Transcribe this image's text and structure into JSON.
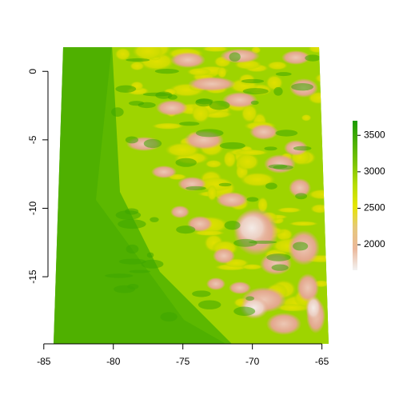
{
  "map": {
    "type": "raster",
    "title": "",
    "xlabel": "",
    "ylabel": "",
    "xlim": [
      -84.7,
      -64.0
    ],
    "ylim": [
      -19.9,
      2.0
    ],
    "x_ticks": [
      {
        "value": -85,
        "label": "-85"
      },
      {
        "value": -80,
        "label": "-80"
      },
      {
        "value": -75,
        "label": "-75"
      },
      {
        "value": -70,
        "label": "-70"
      },
      {
        "value": -65,
        "label": "-65"
      }
    ],
    "y_ticks": [
      {
        "value": 0,
        "label": "0"
      },
      {
        "value": -5,
        "label": "-5"
      },
      {
        "value": -10,
        "label": "-10"
      },
      {
        "value": -15,
        "label": "-15"
      }
    ],
    "legend": {
      "placement": "right",
      "range": [
        1650,
        3700
      ],
      "ticks": [
        {
          "value": 2000,
          "label": "2000"
        },
        {
          "value": 2500,
          "label": "2500"
        },
        {
          "value": 3000,
          "label": "3000"
        },
        {
          "value": 3500,
          "label": "3500"
        }
      ],
      "colors": [
        "#f2f2f2",
        "#ebb89b",
        "#e6c87a",
        "#e6e600",
        "#b7dd00",
        "#7cc400",
        "#4cb000",
        "#1b9a00"
      ]
    },
    "palette": {
      "low": "#e3a78c",
      "lowest": "#f0e0d8",
      "mid": "#d8d800",
      "high": "#58b800",
      "highest": "#2a9e00"
    }
  }
}
